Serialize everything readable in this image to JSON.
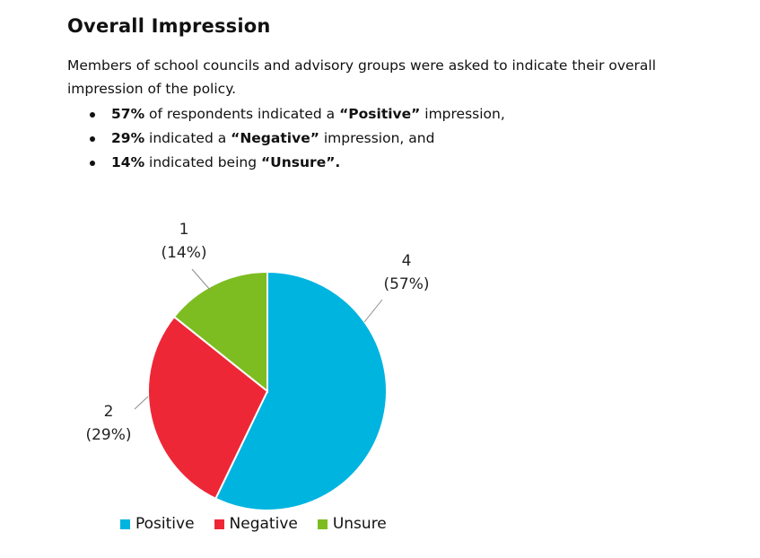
{
  "heading": "Overall Impression",
  "intro": "Members of school councils and advisory groups were asked to indicate their overall impression of the policy.",
  "bullets": [
    {
      "pct": "57%",
      "pre": " of respondents indicated a ",
      "term": "“Positive”",
      "post": " impression,"
    },
    {
      "pct": "29%",
      "pre": " indicated a ",
      "term": "“Negative”",
      "post": " impression, and"
    },
    {
      "pct": "14%",
      "pre": " indicated being ",
      "term": "“Unsure”.",
      "post": ""
    }
  ],
  "chart_data": {
    "type": "pie",
    "title": "",
    "slices": [
      {
        "name": "Positive",
        "value": 4,
        "label_count": "4",
        "label_pct": "(57%)",
        "color": "#00B4E0"
      },
      {
        "name": "Negative",
        "value": 2,
        "label_count": "2",
        "label_pct": "(29%)",
        "color": "#EE2737"
      },
      {
        "name": "Unsure",
        "value": 1,
        "label_count": "1",
        "label_pct": "(14%)",
        "color": "#7DBD21"
      }
    ],
    "legend_position": "bottom"
  }
}
